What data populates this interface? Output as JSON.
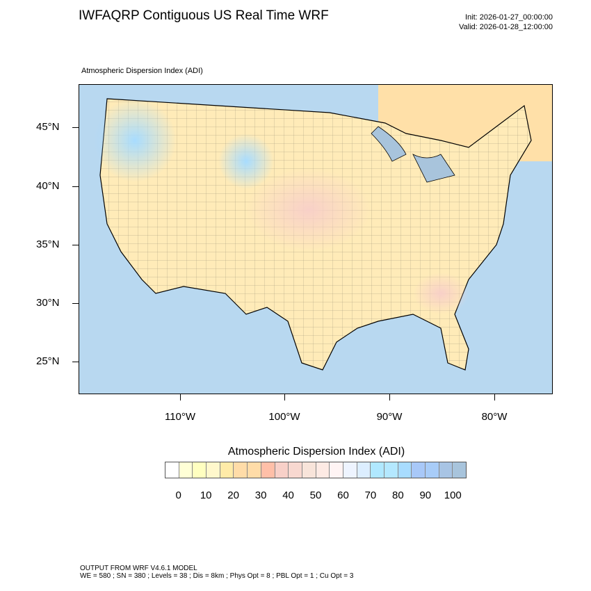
{
  "header": {
    "title": "IWFAQRP Contiguous US Real Time WRF",
    "init": "Init: 2026-01-27_00:00:00",
    "valid": "Valid: 2026-01-28_12:00:00"
  },
  "map": {
    "field_label": "Atmospheric Dispersion Index   (ADI)",
    "lat_labels": [
      "45°N",
      "40°N",
      "35°N",
      "30°N",
      "25°N"
    ],
    "lon_labels": [
      "110°W",
      "100°W",
      "90°W",
      "80°W"
    ],
    "ocean_color": "#a8c4dc",
    "land_color": "#ffebb8"
  },
  "colorbar": {
    "title": "Atmospheric Dispersion Index  (ADI)",
    "labels": [
      "0",
      "10",
      "20",
      "30",
      "40",
      "50",
      "60",
      "70",
      "80",
      "90",
      "100"
    ],
    "colors": [
      "#ffffff",
      "#ffffd6",
      "#ffffc0",
      "#fff8cc",
      "#ffeba8",
      "#ffdca8",
      "#ffdca8",
      "#ffbfa8",
      "#f8d0c8",
      "#f8d8d0",
      "#f8e4da",
      "#fdeae4",
      "#fff4f4",
      "#eef4ff",
      "#dceeff",
      "#b0e8ff",
      "#b4e8ff",
      "#a8dcff",
      "#a8c8f8",
      "#a8ccf8",
      "#a8c4e4",
      "#a8c4dc"
    ]
  },
  "footer": {
    "line1": "OUTPUT FROM WRF V4.6.1 MODEL",
    "line2": "WE = 580 ; SN = 380 ; Levels = 38 ; Dis = 8km ; Phys Opt = 8 ; PBL Opt = 1 ; Cu Opt = 3"
  }
}
